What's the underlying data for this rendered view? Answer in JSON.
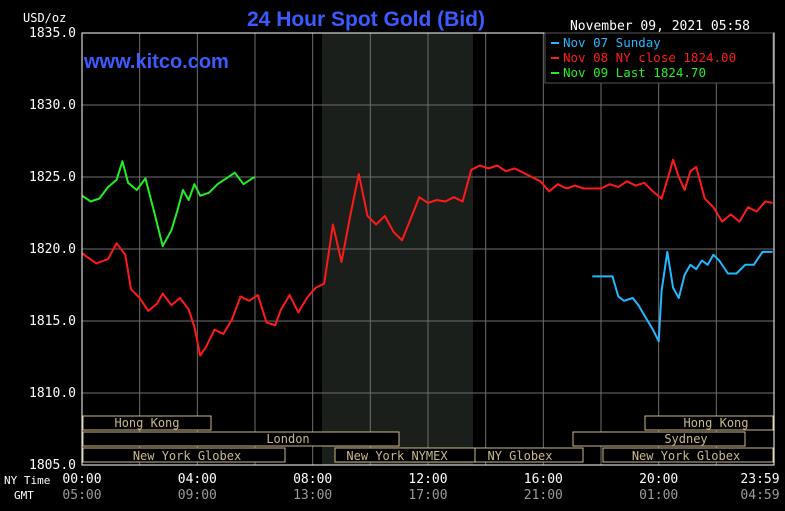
{
  "header": {
    "unit": "USD/oz",
    "title": "24 Hour Spot Gold (Bid)",
    "timestamp": "November 09, 2021 05:58",
    "watermark": "www.kitco.com"
  },
  "legend": [
    {
      "label": "Nov 07 Sunday",
      "color": "#22b8ff"
    },
    {
      "label": "Nov 08 NY close 1824.00",
      "color": "#ff1a1a"
    },
    {
      "label": "Nov 09 Last 1824.70",
      "color": "#22ee22"
    }
  ],
  "axis": {
    "row_label_ny": "NY Time",
    "row_label_gmt": "GMT",
    "ny_ticks": [
      "00:00",
      "04:00",
      "08:00",
      "12:00",
      "16:00",
      "20:00",
      "23:59"
    ],
    "gmt_ticks": [
      "05:00",
      "09:00",
      "13:00",
      "17:00",
      "21:00",
      "01:00",
      "04:59"
    ],
    "y_ticks": [
      "1835.0",
      "1830.0",
      "1825.0",
      "1820.0",
      "1815.0",
      "1810.0",
      "1805.0"
    ]
  },
  "sessions": {
    "hong_kong_left": "Hong Kong",
    "hong_kong_right": "Hong Kong",
    "london": "London",
    "sydney": "Sydney",
    "ny_globex_left": "New York Globex",
    "ny_nymex": "New York NYMEX",
    "ny_globex_mid": "NY Globex",
    "ny_globex_right": "New York Globex"
  },
  "chart_data": {
    "type": "line",
    "title": "24 Hour Spot Gold (Bid)",
    "ylabel": "USD/oz",
    "ylim": [
      1805,
      1835
    ],
    "xlim": [
      0,
      24
    ],
    "x_unit": "NY time, hours",
    "grid": true,
    "legend_position": "top-right",
    "highlight_range_hours": [
      8.3,
      13.5
    ],
    "series": [
      {
        "name": "Nov 08 NY close 1824.00",
        "color": "#ff1a1a",
        "x": [
          0.0,
          0.5,
          0.9,
          1.2,
          1.5,
          1.7,
          2.0,
          2.3,
          2.6,
          2.8,
          3.1,
          3.4,
          3.7,
          3.9,
          4.1,
          4.3,
          4.6,
          4.9,
          5.2,
          5.5,
          5.8,
          6.1,
          6.4,
          6.7,
          6.9,
          7.2,
          7.5,
          7.8,
          8.1,
          8.4,
          8.7,
          9.0,
          9.3,
          9.6,
          9.9,
          10.2,
          10.5,
          10.8,
          11.1,
          11.4,
          11.7,
          12.0,
          12.3,
          12.6,
          12.9,
          13.2,
          13.5,
          13.8,
          14.1,
          14.4,
          14.7,
          15.0,
          15.3,
          15.6,
          15.9,
          16.2,
          16.5,
          16.8,
          17.1,
          17.4,
          17.7,
          18.0,
          18.3,
          18.6,
          18.9,
          19.2,
          19.5,
          19.8,
          20.1,
          20.3,
          20.5,
          20.7,
          20.9,
          21.1,
          21.3,
          21.6,
          21.9,
          22.2,
          22.5,
          22.8,
          23.1,
          23.4,
          23.7,
          23.95
        ],
        "y": [
          1819.7,
          1819.0,
          1819.3,
          1820.4,
          1819.6,
          1817.2,
          1816.6,
          1815.7,
          1816.2,
          1816.9,
          1816.1,
          1816.6,
          1815.8,
          1814.6,
          1812.6,
          1813.2,
          1814.4,
          1814.1,
          1815.1,
          1816.7,
          1816.4,
          1816.8,
          1814.9,
          1814.7,
          1815.8,
          1816.8,
          1815.6,
          1816.6,
          1817.3,
          1817.6,
          1821.7,
          1819.1,
          1822.3,
          1825.2,
          1822.3,
          1821.7,
          1822.3,
          1821.2,
          1820.6,
          1822.1,
          1823.6,
          1823.2,
          1823.4,
          1823.3,
          1823.6,
          1823.3,
          1825.5,
          1825.8,
          1825.6,
          1825.8,
          1825.4,
          1825.6,
          1825.3,
          1825.0,
          1824.7,
          1824.0,
          1824.5,
          1824.2,
          1824.4,
          1824.2,
          1824.2,
          1824.2,
          1824.5,
          1824.3,
          1824.7,
          1824.4,
          1824.6,
          1824.0,
          1823.5,
          1824.8,
          1826.2,
          1825.0,
          1824.1,
          1825.4,
          1825.7,
          1823.5,
          1822.9,
          1821.9,
          1822.4,
          1821.9,
          1822.9,
          1822.6,
          1823.3,
          1823.2
        ]
      },
      {
        "name": "Nov 07 Sunday",
        "color": "#22b8ff",
        "x": [
          17.7,
          18.1,
          18.4,
          18.6,
          18.8,
          19.1,
          19.3,
          19.5,
          19.8,
          20.0,
          20.1,
          20.3,
          20.5,
          20.7,
          20.9,
          21.1,
          21.3,
          21.5,
          21.7,
          21.9,
          22.1,
          22.4,
          22.7,
          23.0,
          23.3,
          23.6,
          23.95
        ],
        "y": [
          1818.1,
          1818.1,
          1818.1,
          1816.7,
          1816.4,
          1816.6,
          1816.1,
          1815.4,
          1814.4,
          1813.6,
          1817.1,
          1819.8,
          1817.3,
          1816.6,
          1818.2,
          1818.9,
          1818.6,
          1819.2,
          1818.9,
          1819.6,
          1819.2,
          1818.3,
          1818.3,
          1818.9,
          1818.9,
          1819.8,
          1819.8
        ]
      },
      {
        "name": "Nov 09 Last 1824.70",
        "color": "#22ee22",
        "x": [
          0.0,
          0.3,
          0.6,
          0.9,
          1.2,
          1.4,
          1.6,
          1.9,
          2.2,
          2.5,
          2.8,
          3.1,
          3.3,
          3.5,
          3.7,
          3.9,
          4.1,
          4.4,
          4.7,
          5.0,
          5.3,
          5.6,
          5.9,
          6.0
        ],
        "y": [
          1823.7,
          1823.3,
          1823.5,
          1824.3,
          1824.8,
          1826.1,
          1824.6,
          1824.1,
          1824.9,
          1822.6,
          1820.2,
          1821.3,
          1822.6,
          1824.1,
          1823.4,
          1824.5,
          1823.7,
          1823.9,
          1824.5,
          1824.9,
          1825.3,
          1824.5,
          1824.9,
          1825.0
        ]
      }
    ]
  }
}
